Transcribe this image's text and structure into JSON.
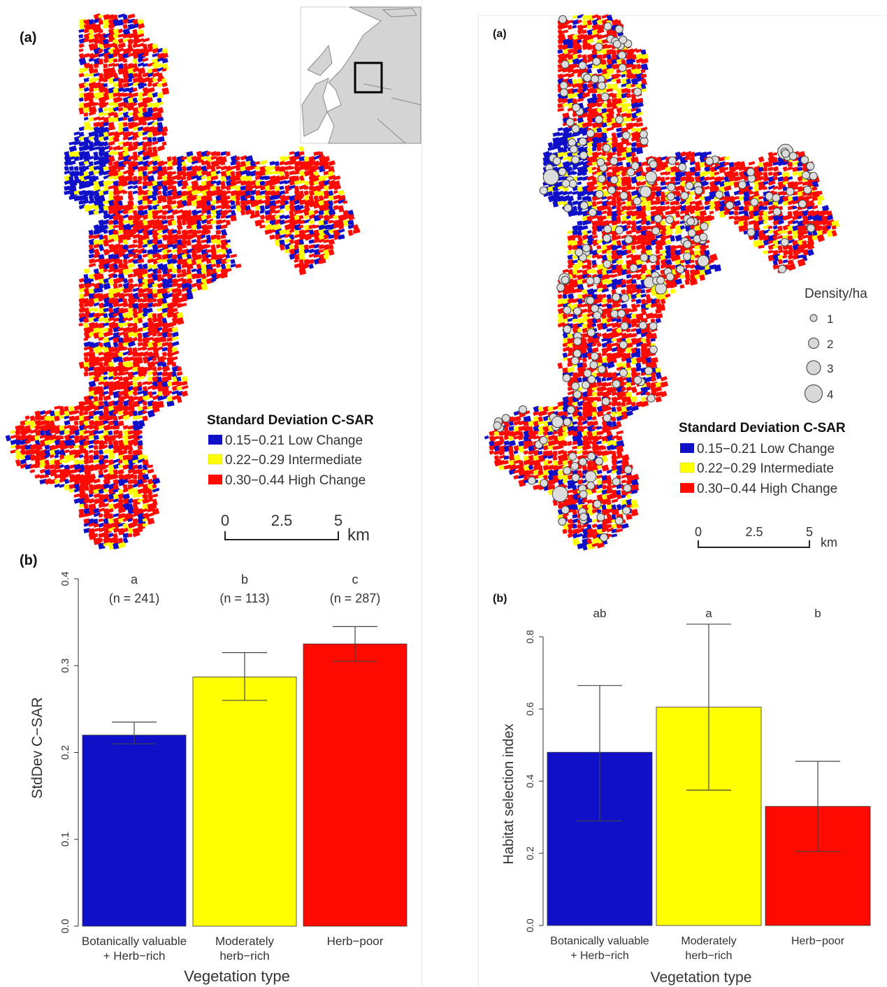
{
  "left": {
    "map": {
      "panel_label": "(a)",
      "legend": {
        "title": "Standard Deviation C-SAR",
        "items": [
          {
            "label": "0.15−0.21 Low Change",
            "color": "#1010c8"
          },
          {
            "label": "0.22−0.29 Intermediate",
            "color": "#ffff00"
          },
          {
            "label": "0.30−0.44 High Change",
            "color": "#ff0a00"
          }
        ]
      },
      "scale": {
        "ticks": [
          "0",
          "2.5",
          "5"
        ],
        "unit": "km"
      }
    },
    "bar": {
      "panel_label": "(b)"
    }
  },
  "right": {
    "map": {
      "panel_label": "(a)",
      "density_legend": {
        "title": "Density/ha",
        "items": [
          "1",
          "2",
          "3",
          "4"
        ]
      },
      "legend": {
        "title": "Standard Deviation C-SAR",
        "items": [
          {
            "label": "0.15−0.21 Low Change",
            "color": "#1010c8"
          },
          {
            "label": "0.22−0.29 Intermediate",
            "color": "#ffff00"
          },
          {
            "label": "0.30−0.44 High Change",
            "color": "#ff0a00"
          }
        ]
      },
      "scale": {
        "ticks": [
          "0",
          "2.5",
          "5"
        ],
        "unit": "km"
      }
    },
    "bar": {
      "panel_label": "(b)"
    }
  },
  "chart_data": [
    {
      "type": "bar",
      "title": "",
      "xlabel": "Vegetation type",
      "ylabel": "StdDev C−SAR",
      "ylim": [
        0,
        0.4
      ],
      "yticks": [
        "0.0",
        "0.1",
        "0.2",
        "0.3",
        "0.4"
      ],
      "categories": [
        "Botanically valuable + Herb−rich",
        "Moderately herb−rich",
        "Herb−poor"
      ],
      "category_lines": [
        [
          "Botanically valuable",
          "+ Herb−rich"
        ],
        [
          "Moderately",
          "herb−rich"
        ],
        [
          "Herb−poor"
        ]
      ],
      "values": [
        0.22,
        0.287,
        0.325
      ],
      "error_low": [
        0.21,
        0.26,
        0.305
      ],
      "error_high": [
        0.235,
        0.315,
        0.345
      ],
      "colors": [
        "#1010c8",
        "#ffff00",
        "#ff0a00"
      ],
      "significance": [
        "a",
        "b",
        "c"
      ],
      "n_labels": [
        "(n = 241)",
        "(n = 113)",
        "(n = 287)"
      ]
    },
    {
      "type": "bar",
      "title": "",
      "xlabel": "Vegetation type",
      "ylabel": "Habitat selection index",
      "ylim": [
        0,
        0.8
      ],
      "yticks": [
        "0.0",
        "0.2",
        "0.4",
        "0.6",
        "0.8"
      ],
      "categories": [
        "Botanically valuable + Herb−rich",
        "Moderately herb−rich",
        "Herb−poor"
      ],
      "category_lines": [
        [
          "Botanically valuable",
          "+ Herb−rich"
        ],
        [
          "Moderately",
          "herb−rich"
        ],
        [
          "Herb−poor"
        ]
      ],
      "values": [
        0.48,
        0.605,
        0.33
      ],
      "error_low": [
        0.29,
        0.375,
        0.205
      ],
      "error_high": [
        0.665,
        0.835,
        0.455
      ],
      "colors": [
        "#1010c8",
        "#ffff00",
        "#ff0a00"
      ],
      "significance": [
        "ab",
        "a",
        "b"
      ],
      "n_labels": []
    }
  ]
}
